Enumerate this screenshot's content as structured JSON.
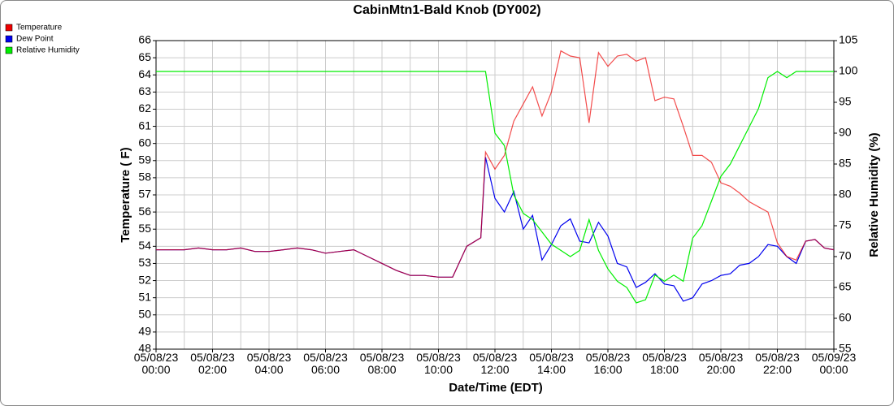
{
  "chart_data": {
    "type": "line",
    "title": "CabinMtn1-Bald Knob (DY002)",
    "x_label": "Date/Time (EDT)",
    "y_label": "Temperature ( F)",
    "y2_label": "Relative Humidity (%)",
    "x": [
      "05/08/23 00:00",
      "05/08/23 00:30",
      "05/08/23 01:00",
      "05/08/23 01:30",
      "05/08/23 02:00",
      "05/08/23 02:30",
      "05/08/23 03:00",
      "05/08/23 03:30",
      "05/08/23 04:00",
      "05/08/23 04:30",
      "05/08/23 05:00",
      "05/08/23 05:30",
      "05/08/23 06:00",
      "05/08/23 06:30",
      "05/08/23 07:00",
      "05/08/23 07:30",
      "05/08/23 08:00",
      "05/08/23 08:30",
      "05/08/23 09:00",
      "05/08/23 09:30",
      "05/08/23 10:00",
      "05/08/23 10:30",
      "05/08/23 11:00",
      "05/08/23 11:30",
      "05/08/23 11:40",
      "05/08/23 12:00",
      "05/08/23 12:20",
      "05/08/23 12:40",
      "05/08/23 13:00",
      "05/08/23 13:20",
      "05/08/23 13:40",
      "05/08/23 14:00",
      "05/08/23 14:20",
      "05/08/23 14:40",
      "05/08/23 15:00",
      "05/08/23 15:20",
      "05/08/23 15:40",
      "05/08/23 16:00",
      "05/08/23 16:20",
      "05/08/23 16:40",
      "05/08/23 17:00",
      "05/08/23 17:20",
      "05/08/23 17:40",
      "05/08/23 18:00",
      "05/08/23 18:20",
      "05/08/23 18:40",
      "05/08/23 19:00",
      "05/08/23 19:20",
      "05/08/23 19:40",
      "05/08/23 20:00",
      "05/08/23 20:20",
      "05/08/23 20:40",
      "05/08/23 21:00",
      "05/08/23 21:20",
      "05/08/23 21:40",
      "05/08/23 22:00",
      "05/08/23 22:20",
      "05/08/23 22:40",
      "05/08/23 23:00",
      "05/08/23 23:20",
      "05/08/23 23:40",
      "05/09/23 00:00"
    ],
    "series": [
      {
        "name": "Dew Point",
        "color": "#0000ee",
        "values": [
          53.8,
          53.8,
          53.8,
          53.9,
          53.8,
          53.8,
          53.9,
          53.7,
          53.7,
          53.8,
          53.9,
          53.8,
          53.6,
          53.7,
          53.8,
          53.4,
          53.0,
          52.6,
          52.3,
          52.3,
          52.2,
          52.2,
          54.0,
          54.5,
          59.2,
          56.8,
          56.0,
          57.2,
          55.0,
          55.8,
          53.2,
          54.1,
          55.2,
          55.6,
          54.3,
          54.2,
          55.4,
          54.6,
          53.0,
          52.8,
          51.6,
          51.9,
          52.4,
          51.8,
          51.7,
          50.8,
          51.0,
          51.8,
          52.0,
          52.3,
          52.4,
          52.9,
          53.0,
          53.4,
          54.1,
          54.0,
          53.4,
          53.0,
          54.3,
          54.4,
          53.9,
          53.8
        ]
      },
      {
        "name": "Temperature",
        "color": "#ee0000",
        "values": [
          53.8,
          53.8,
          53.8,
          53.9,
          53.8,
          53.8,
          53.9,
          53.7,
          53.7,
          53.8,
          53.9,
          53.8,
          53.6,
          53.7,
          53.8,
          53.4,
          53.0,
          52.6,
          52.3,
          52.3,
          52.2,
          52.2,
          54.0,
          54.5,
          59.5,
          58.5,
          59.3,
          61.3,
          62.3,
          63.3,
          61.6,
          63.0,
          65.4,
          65.1,
          65.0,
          61.2,
          65.3,
          64.5,
          65.1,
          65.2,
          64.8,
          65.0,
          62.5,
          62.7,
          62.6,
          61.0,
          59.3,
          59.3,
          58.9,
          57.7,
          57.5,
          57.1,
          56.6,
          56.3,
          56.0,
          54.2,
          53.4,
          53.2,
          54.3,
          54.4,
          53.9,
          53.8
        ]
      },
      {
        "name": "Relative Humidity",
        "color": "#00ee00",
        "axis": "y2",
        "values": [
          100,
          100,
          100,
          100,
          100,
          100,
          100,
          100,
          100,
          100,
          100,
          100,
          100,
          100,
          100,
          100,
          100,
          100,
          100,
          100,
          100,
          100,
          100,
          100,
          100,
          90,
          88,
          80,
          77,
          76,
          74,
          72,
          71,
          70,
          71,
          76,
          71,
          68,
          66,
          65,
          62.5,
          63,
          67,
          66,
          67,
          66,
          73,
          75,
          79,
          83,
          85,
          88,
          91,
          94,
          99,
          100,
          99,
          100,
          100,
          100,
          100,
          100
        ]
      }
    ],
    "legend_order": [
      "Temperature",
      "Dew Point",
      "Relative Humidity"
    ],
    "xlim": [
      "05/08/23 00:00",
      "05/09/23 00:00"
    ],
    "xticks": [
      {
        "value": "05/08/23 00:00",
        "label": "05/08/23\n00:00"
      },
      {
        "value": "05/08/23 02:00",
        "label": "05/08/23\n02:00"
      },
      {
        "value": "05/08/23 04:00",
        "label": "05/08/23\n04:00"
      },
      {
        "value": "05/08/23 06:00",
        "label": "05/08/23\n06:00"
      },
      {
        "value": "05/08/23 08:00",
        "label": "05/08/23\n08:00"
      },
      {
        "value": "05/08/23 10:00",
        "label": "05/08/23\n10:00"
      },
      {
        "value": "05/08/23 12:00",
        "label": "05/08/23\n12:00"
      },
      {
        "value": "05/08/23 14:00",
        "label": "05/08/23\n14:00"
      },
      {
        "value": "05/08/23 16:00",
        "label": "05/08/23\n16:00"
      },
      {
        "value": "05/08/23 18:00",
        "label": "05/08/23\n18:00"
      },
      {
        "value": "05/08/23 20:00",
        "label": "05/08/23\n20:00"
      },
      {
        "value": "05/08/23 22:00",
        "label": "05/08/23\n22:00"
      },
      {
        "value": "05/09/23 00:00",
        "label": "05/09/23\n00:00"
      }
    ],
    "ylim": [
      48,
      66
    ],
    "yticks": [
      48,
      49,
      50,
      51,
      52,
      53,
      54,
      55,
      56,
      57,
      58,
      59,
      60,
      61,
      62,
      63,
      64,
      65,
      66
    ],
    "y2lim": [
      55,
      105
    ],
    "y2ticks": [
      55,
      60,
      65,
      70,
      75,
      80,
      85,
      90,
      95,
      100,
      105
    ],
    "grid": true,
    "legend": "top-left"
  }
}
